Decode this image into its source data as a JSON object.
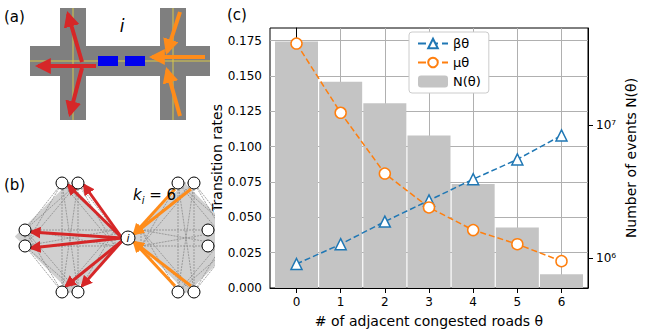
{
  "panels": {
    "a": {
      "label": "(a)",
      "road_label": "i"
    },
    "b": {
      "label": "(b)",
      "node_label": "i",
      "degree_label": {
        "main": "k",
        "sub": "i",
        "rest": " = 6"
      }
    }
  },
  "chart_data": {
    "type": "bar+line",
    "panel_label": "(c)",
    "x_label": "# of adjacent congested roads θ",
    "y_label": "Transition rates",
    "y2_label": "Number of events N(θ)",
    "x": [
      0,
      1,
      2,
      3,
      4,
      5,
      6
    ],
    "xlim": [
      -0.6,
      6.6
    ],
    "xticks": [
      0,
      1,
      2,
      3,
      4,
      5,
      6
    ],
    "ylim": [
      0,
      0.184
    ],
    "yticks": [
      {
        "value": 0,
        "label": "0.000"
      },
      {
        "value": 0.025,
        "label": "0.025"
      },
      {
        "value": 0.05,
        "label": "0.050"
      },
      {
        "value": 0.075,
        "label": "0.075"
      },
      {
        "value": 0.1,
        "label": "0.100"
      },
      {
        "value": 0.125,
        "label": "0.125"
      },
      {
        "value": 0.15,
        "label": "0.150"
      },
      {
        "value": 0.175,
        "label": "0.175"
      }
    ],
    "y2lim": [
      600000,
      53000000
    ],
    "y2ticks": [
      {
        "value": 1000000,
        "label": "10⁶"
      },
      {
        "value": 10000000,
        "label": "10⁷"
      }
    ],
    "log": "y2",
    "grid": true,
    "legend": "upper center",
    "series": [
      {
        "name": "βθ",
        "type": "line",
        "color": "#1f77b4",
        "marker": "triangle",
        "line_style": "dashed",
        "values": [
          0.017,
          0.031,
          0.047,
          0.062,
          0.077,
          0.091,
          0.108
        ]
      },
      {
        "name": "μθ",
        "type": "line",
        "color": "#ff7f0e",
        "marker": "circle",
        "line_style": "dashed",
        "values": [
          0.173,
          0.124,
          0.081,
          0.057,
          0.041,
          0.031,
          0.019
        ]
      },
      {
        "name": "N(θ)",
        "type": "bar",
        "axis": "y2",
        "color": "#c4c4c4",
        "values": [
          42000000,
          21000000,
          14500000,
          8300000,
          3600000,
          1700000,
          760000
        ]
      }
    ]
  }
}
